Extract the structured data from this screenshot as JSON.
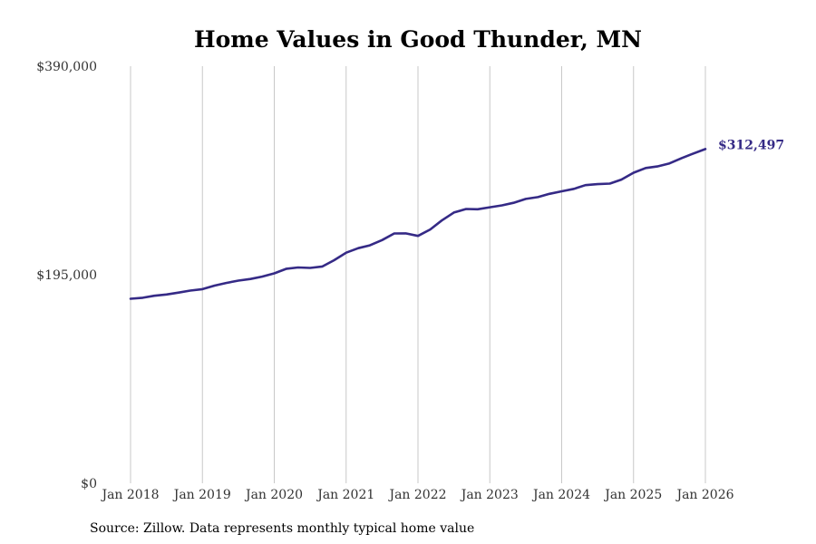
{
  "chart_data": {
    "type": "line",
    "title": "Home Values in Good Thunder, MN",
    "xlabel": "",
    "ylabel": "",
    "x_start": "Jan 2018",
    "x_ticks": [
      "Jan 2018",
      "Jan 2019",
      "Jan 2020",
      "Jan 2021",
      "Jan 2022",
      "Jan 2023",
      "Jan 2024",
      "Jan 2025",
      "Jan 2026"
    ],
    "xlim": [
      0,
      8
    ],
    "y_ticks": [
      {
        "value": 0,
        "label": "$0"
      },
      {
        "value": 195000,
        "label": "$195,000"
      },
      {
        "value": 390000,
        "label": "$390,000"
      }
    ],
    "ylim": [
      0,
      390000
    ],
    "grid": "vertical",
    "series": [
      {
        "name": "Typical home value",
        "color": "#352a86",
        "points": [
          [
            0.0,
            172500
          ],
          [
            0.17,
            173500
          ],
          [
            0.33,
            175300
          ],
          [
            0.5,
            176500
          ],
          [
            0.67,
            178300
          ],
          [
            0.83,
            180200
          ],
          [
            1.0,
            181500
          ],
          [
            1.17,
            184800
          ],
          [
            1.33,
            187300
          ],
          [
            1.5,
            189500
          ],
          [
            1.67,
            191000
          ],
          [
            1.83,
            193200
          ],
          [
            2.0,
            196300
          ],
          [
            2.17,
            200600
          ],
          [
            2.33,
            201800
          ],
          [
            2.5,
            201400
          ],
          [
            2.67,
            202700
          ],
          [
            2.83,
            208500
          ],
          [
            3.0,
            215600
          ],
          [
            3.17,
            219800
          ],
          [
            3.33,
            222500
          ],
          [
            3.5,
            227400
          ],
          [
            3.67,
            233600
          ],
          [
            3.83,
            233700
          ],
          [
            4.0,
            231300
          ],
          [
            4.17,
            237300
          ],
          [
            4.33,
            245700
          ],
          [
            4.5,
            253200
          ],
          [
            4.67,
            256500
          ],
          [
            4.83,
            256200
          ],
          [
            5.0,
            258100
          ],
          [
            5.17,
            259900
          ],
          [
            5.33,
            262200
          ],
          [
            5.5,
            265900
          ],
          [
            5.67,
            267600
          ],
          [
            5.83,
            270600
          ],
          [
            6.0,
            273000
          ],
          [
            6.17,
            275300
          ],
          [
            6.33,
            278800
          ],
          [
            6.5,
            279700
          ],
          [
            6.67,
            280200
          ],
          [
            6.83,
            283900
          ],
          [
            7.0,
            290400
          ],
          [
            7.17,
            294800
          ],
          [
            7.33,
            296200
          ],
          [
            7.5,
            299100
          ],
          [
            7.67,
            304000
          ],
          [
            7.83,
            308300
          ],
          [
            8.0,
            312497
          ]
        ]
      }
    ],
    "end_label": "$312,497"
  },
  "source_text": "Source: Zillow. Data represents monthly typical home value"
}
